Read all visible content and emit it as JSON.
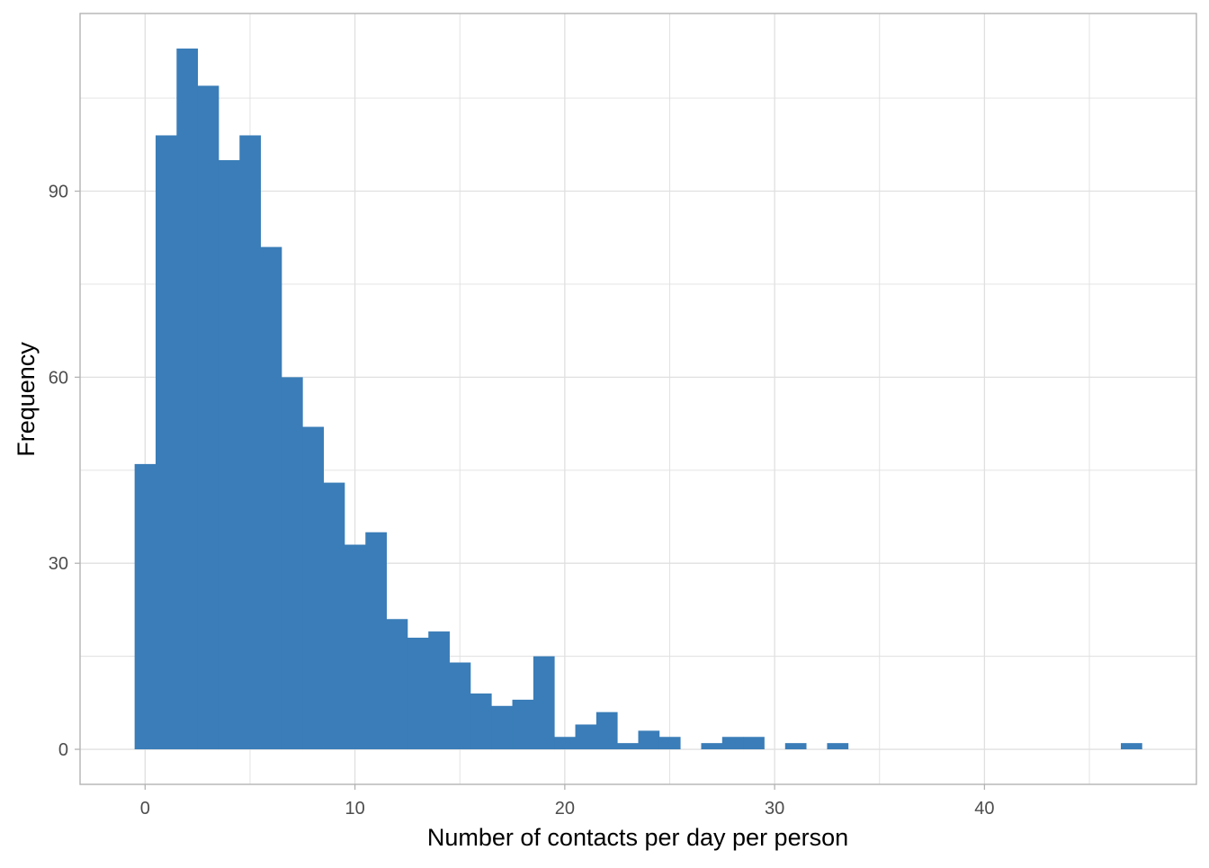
{
  "chart_data": {
    "type": "bar",
    "subtype": "histogram",
    "title": "",
    "xlabel": "Number of contacts per day per person",
    "ylabel": "Frequency",
    "bin_width": 1,
    "bin_centers": [
      0,
      1,
      2,
      3,
      4,
      5,
      6,
      7,
      8,
      9,
      10,
      11,
      12,
      13,
      14,
      15,
      16,
      17,
      18,
      19,
      20,
      21,
      22,
      23,
      24,
      25,
      26,
      27,
      28,
      29,
      30,
      31,
      32,
      33,
      34,
      35,
      36,
      37,
      38,
      39,
      40,
      41,
      42,
      43,
      44,
      45,
      46,
      47
    ],
    "values": [
      46,
      99,
      113,
      107,
      95,
      99,
      81,
      60,
      52,
      43,
      33,
      35,
      21,
      18,
      19,
      14,
      9,
      7,
      8,
      15,
      2,
      4,
      6,
      1,
      3,
      2,
      0,
      1,
      2,
      2,
      0,
      1,
      0,
      1,
      0,
      0,
      0,
      0,
      0,
      0,
      0,
      0,
      0,
      0,
      0,
      0,
      0,
      1
    ],
    "xlim": [
      -3.1,
      50.1
    ],
    "ylim": [
      -5.65,
      118.65
    ],
    "x_ticks": [
      0,
      10,
      20,
      30,
      40
    ],
    "x_tick_labels": [
      "0",
      "10",
      "20",
      "30",
      "40"
    ],
    "y_ticks": [
      0,
      30,
      60,
      90
    ],
    "y_tick_labels": [
      "0",
      "30",
      "60",
      "90"
    ],
    "grid": true,
    "legend": "none",
    "colors": {
      "bar": "#3A7DB8",
      "grid": "#E0E0E0",
      "panel_border": "#B3B3B3",
      "tick_text": "#4D4D4D",
      "axis_title": "#000000"
    }
  }
}
